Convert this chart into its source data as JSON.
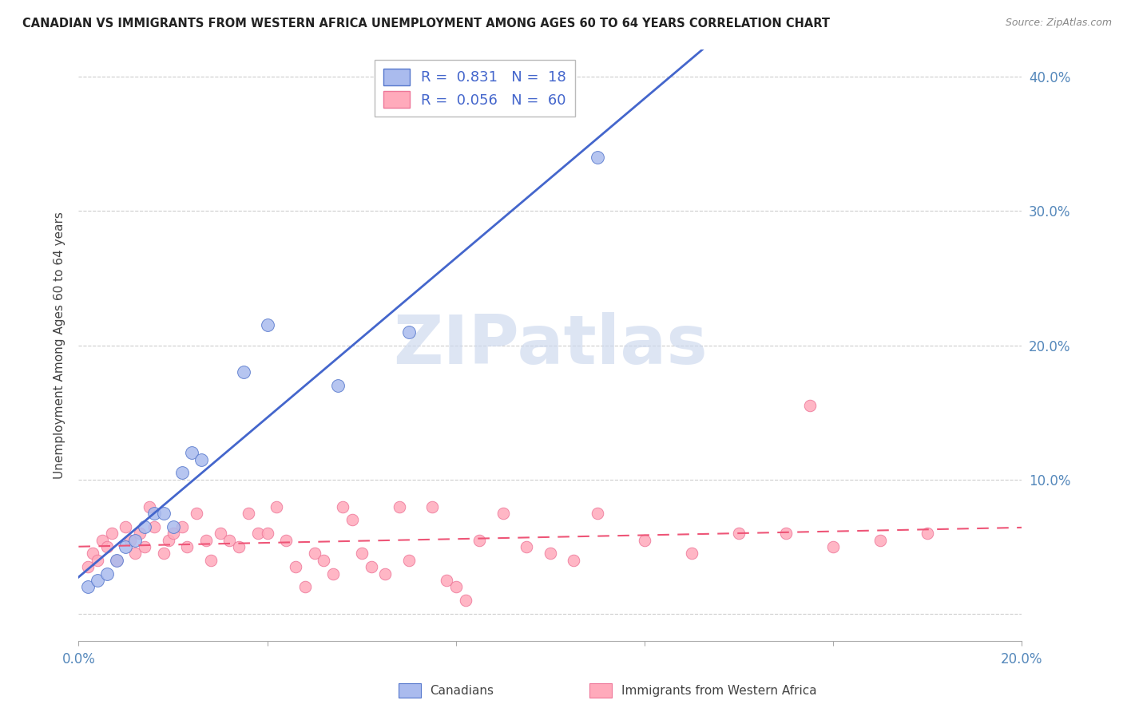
{
  "title": "CANADIAN VS IMMIGRANTS FROM WESTERN AFRICA UNEMPLOYMENT AMONG AGES 60 TO 64 YEARS CORRELATION CHART",
  "source": "Source: ZipAtlas.com",
  "ylabel": "Unemployment Among Ages 60 to 64 years",
  "xlim": [
    0.0,
    0.2
  ],
  "ylim": [
    -0.02,
    0.42
  ],
  "xticks": [
    0.0,
    0.04,
    0.08,
    0.12,
    0.16,
    0.2
  ],
  "yticks": [
    0.0,
    0.1,
    0.2,
    0.3,
    0.4
  ],
  "xticklabels": [
    "0.0%",
    "",
    "",
    "",
    "",
    "20.0%"
  ],
  "yticklabels_right": [
    "",
    "10.0%",
    "20.0%",
    "30.0%",
    "40.0%"
  ],
  "legend_R_canadian": "0.831",
  "legend_N_canadian": "18",
  "legend_R_immigrant": "0.056",
  "legend_N_immigrant": "60",
  "canadian_face_color": "#aabbee",
  "canadian_edge_color": "#5577cc",
  "immigrant_face_color": "#ffaabb",
  "immigrant_edge_color": "#ee7799",
  "canadian_line_color": "#4466cc",
  "immigrant_line_color": "#ee5577",
  "watermark": "ZIPatlas",
  "canadian_x": [
    0.002,
    0.004,
    0.006,
    0.008,
    0.01,
    0.012,
    0.014,
    0.016,
    0.018,
    0.02,
    0.022,
    0.024,
    0.026,
    0.035,
    0.04,
    0.055,
    0.07,
    0.11
  ],
  "canadian_y": [
    0.02,
    0.025,
    0.03,
    0.04,
    0.05,
    0.055,
    0.065,
    0.075,
    0.075,
    0.065,
    0.105,
    0.12,
    0.115,
    0.18,
    0.215,
    0.17,
    0.21,
    0.34
  ],
  "immigrant_x": [
    0.002,
    0.003,
    0.004,
    0.005,
    0.006,
    0.007,
    0.008,
    0.01,
    0.011,
    0.012,
    0.013,
    0.014,
    0.015,
    0.016,
    0.018,
    0.019,
    0.02,
    0.022,
    0.023,
    0.025,
    0.027,
    0.028,
    0.03,
    0.032,
    0.034,
    0.036,
    0.038,
    0.04,
    0.042,
    0.044,
    0.046,
    0.048,
    0.05,
    0.052,
    0.054,
    0.056,
    0.058,
    0.06,
    0.062,
    0.065,
    0.068,
    0.07,
    0.075,
    0.078,
    0.08,
    0.082,
    0.085,
    0.09,
    0.095,
    0.1,
    0.105,
    0.11,
    0.12,
    0.13,
    0.14,
    0.15,
    0.155,
    0.16,
    0.17,
    0.18
  ],
  "immigrant_y": [
    0.035,
    0.045,
    0.04,
    0.055,
    0.05,
    0.06,
    0.04,
    0.065,
    0.055,
    0.045,
    0.06,
    0.05,
    0.08,
    0.065,
    0.045,
    0.055,
    0.06,
    0.065,
    0.05,
    0.075,
    0.055,
    0.04,
    0.06,
    0.055,
    0.05,
    0.075,
    0.06,
    0.06,
    0.08,
    0.055,
    0.035,
    0.02,
    0.045,
    0.04,
    0.03,
    0.08,
    0.07,
    0.045,
    0.035,
    0.03,
    0.08,
    0.04,
    0.08,
    0.025,
    0.02,
    0.01,
    0.055,
    0.075,
    0.05,
    0.045,
    0.04,
    0.075,
    0.055,
    0.045,
    0.06,
    0.06,
    0.155,
    0.05,
    0.055,
    0.06
  ]
}
